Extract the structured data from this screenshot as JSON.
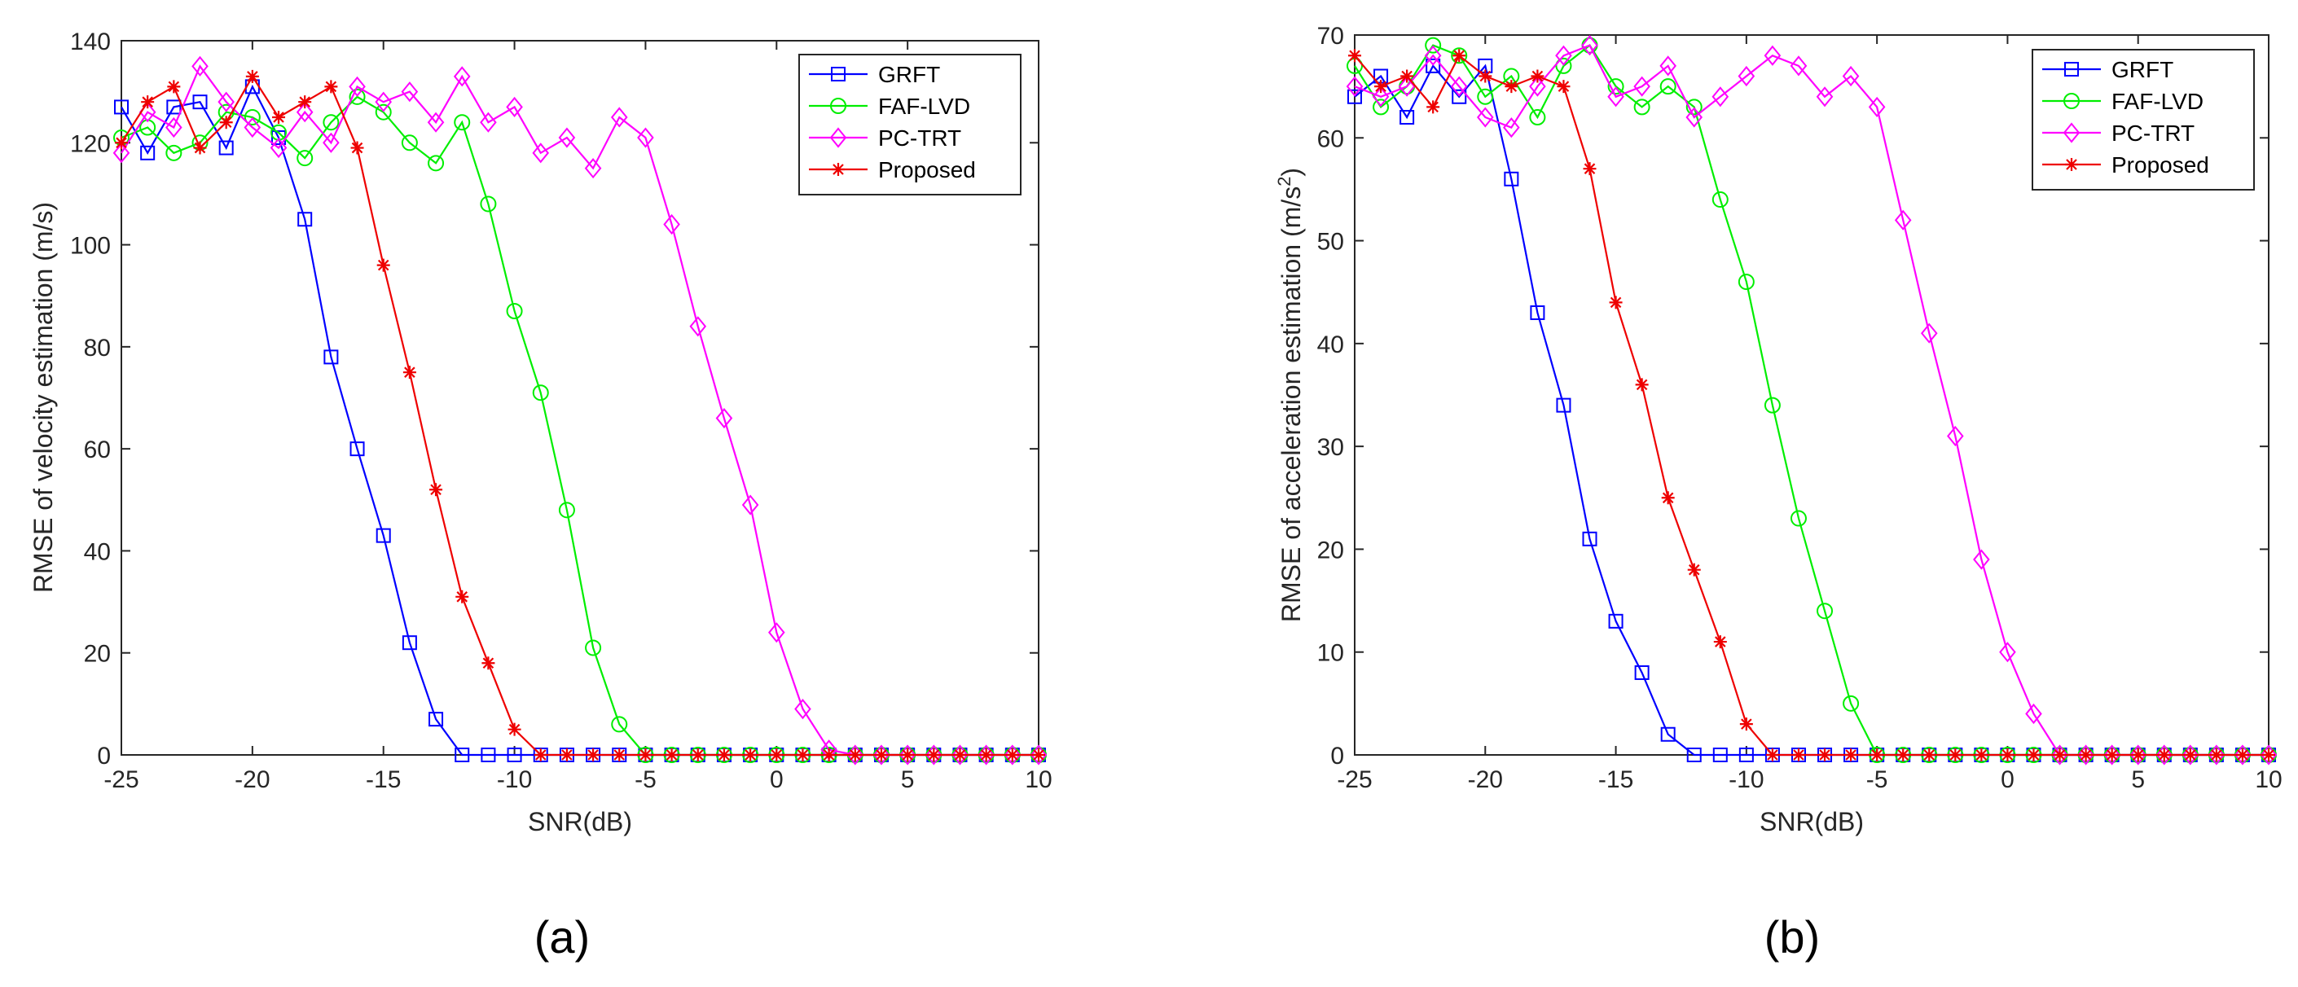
{
  "panels": [
    {
      "caption": "(a)"
    },
    {
      "caption": "(b)"
    }
  ],
  "series_styles": [
    {
      "name": "GRFT",
      "color": "#0000ff",
      "marker": "square"
    },
    {
      "name": "FAF-LVD",
      "color": "#00ee00",
      "marker": "circle"
    },
    {
      "name": "PC-TRT",
      "color": "#ff00ff",
      "marker": "diamond"
    },
    {
      "name": "Proposed",
      "color": "#ee0000",
      "marker": "asterisk"
    }
  ],
  "chart_data": [
    {
      "type": "line",
      "xlabel": "SNR(dB)",
      "ylabel": "RMSE of velocity estimation (m/s)",
      "ylabel_superscript": "",
      "ylabel_suffix": "",
      "xlim": [
        -25,
        10
      ],
      "ylim": [
        0,
        140
      ],
      "xticks": [
        -25,
        -20,
        -15,
        -10,
        -5,
        0,
        5,
        10
      ],
      "yticks": [
        0,
        20,
        40,
        60,
        80,
        100,
        120,
        140
      ],
      "grid": false,
      "legend": "top-right",
      "x": [
        -25,
        -24,
        -23,
        -22,
        -21,
        -20,
        -19,
        -18,
        -17,
        -16,
        -15,
        -14,
        -13,
        -12,
        -11,
        -10,
        -9,
        -8,
        -7,
        -6,
        -5,
        -4,
        -3,
        -2,
        -1,
        0,
        1,
        2,
        3,
        4,
        5,
        6,
        7,
        8,
        9,
        10
      ],
      "series": [
        {
          "name": "GRFT",
          "values": [
            127,
            118,
            127,
            128,
            119,
            131,
            121,
            105,
            78,
            60,
            43,
            22,
            7,
            0,
            0,
            0,
            0,
            0,
            0,
            0,
            0,
            0,
            0,
            0,
            0,
            0,
            0,
            0,
            0,
            0,
            0,
            0,
            0,
            0,
            0,
            0
          ]
        },
        {
          "name": "FAF-LVD",
          "values": [
            121,
            123,
            118,
            120,
            126,
            125,
            122,
            117,
            124,
            129,
            126,
            120,
            116,
            124,
            108,
            87,
            71,
            48,
            21,
            6,
            0,
            0,
            0,
            0,
            0,
            0,
            0,
            0,
            0,
            0,
            0,
            0,
            0,
            0,
            0,
            0
          ]
        },
        {
          "name": "PC-TRT",
          "values": [
            118,
            126,
            123,
            135,
            128,
            123,
            119,
            126,
            120,
            131,
            128,
            130,
            124,
            133,
            124,
            127,
            118,
            121,
            115,
            125,
            121,
            104,
            84,
            66,
            49,
            24,
            9,
            1,
            0,
            0,
            0,
            0,
            0,
            0,
            0,
            0
          ]
        },
        {
          "name": "Proposed",
          "values": [
            120,
            128,
            131,
            119,
            124,
            133,
            125,
            128,
            131,
            119,
            96,
            75,
            52,
            31,
            18,
            5,
            0,
            0,
            0,
            0,
            0,
            0,
            0,
            0,
            0,
            0,
            0,
            0,
            0,
            0,
            0,
            0,
            0,
            0,
            0,
            0
          ]
        }
      ]
    },
    {
      "type": "line",
      "xlabel": "SNR(dB)",
      "ylabel": "RMSE of acceleration estimation (m/s",
      "ylabel_superscript": "2",
      "ylabel_suffix": ")",
      "xlim": [
        -25,
        10
      ],
      "ylim": [
        0,
        70
      ],
      "xticks": [
        -25,
        -20,
        -15,
        -10,
        -5,
        0,
        5,
        10
      ],
      "yticks": [
        0,
        10,
        20,
        30,
        40,
        50,
        60,
        70
      ],
      "grid": false,
      "legend": "top-right",
      "x": [
        -25,
        -24,
        -23,
        -22,
        -21,
        -20,
        -19,
        -18,
        -17,
        -16,
        -15,
        -14,
        -13,
        -12,
        -11,
        -10,
        -9,
        -8,
        -7,
        -6,
        -5,
        -4,
        -3,
        -2,
        -1,
        0,
        1,
        2,
        3,
        4,
        5,
        6,
        7,
        8,
        9,
        10
      ],
      "series": [
        {
          "name": "GRFT",
          "values": [
            64,
            66,
            62,
            67,
            64,
            67,
            56,
            43,
            34,
            21,
            13,
            8,
            2,
            0,
            0,
            0,
            0,
            0,
            0,
            0,
            0,
            0,
            0,
            0,
            0,
            0,
            0,
            0,
            0,
            0,
            0,
            0,
            0,
            0,
            0,
            0
          ]
        },
        {
          "name": "FAF-LVD",
          "values": [
            67,
            63,
            65,
            69,
            68,
            64,
            66,
            62,
            67,
            69,
            65,
            63,
            65,
            63,
            54,
            46,
            34,
            23,
            14,
            5,
            0,
            0,
            0,
            0,
            0,
            0,
            0,
            0,
            0,
            0,
            0,
            0,
            0,
            0,
            0,
            0
          ]
        },
        {
          "name": "PC-TRT",
          "values": [
            65,
            64,
            65,
            68,
            65,
            62,
            61,
            65,
            68,
            69,
            64,
            65,
            67,
            62,
            64,
            66,
            68,
            67,
            64,
            66,
            63,
            52,
            41,
            31,
            19,
            10,
            4,
            0,
            0,
            0,
            0,
            0,
            0,
            0,
            0,
            0
          ]
        },
        {
          "name": "Proposed",
          "values": [
            68,
            65,
            66,
            63,
            68,
            66,
            65,
            66,
            65,
            57,
            44,
            36,
            25,
            18,
            11,
            3,
            0,
            0,
            0,
            0,
            0,
            0,
            0,
            0,
            0,
            0,
            0,
            0,
            0,
            0,
            0,
            0,
            0,
            0,
            0,
            0
          ]
        }
      ]
    }
  ]
}
